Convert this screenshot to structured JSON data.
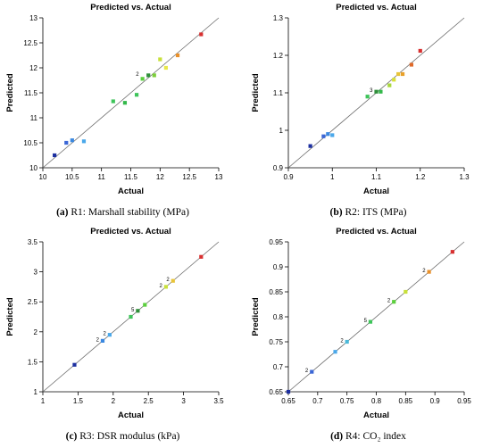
{
  "chart_data": [
    {
      "type": "scatter",
      "title": "Predicted vs. Actual",
      "xlabel": "Actual",
      "ylabel": "Predicted",
      "xlim": [
        10,
        13
      ],
      "ylim": [
        10,
        13
      ],
      "xticks": [
        "10",
        "10.5",
        "11",
        "11.5",
        "12",
        "12.5",
        "13"
      ],
      "yticks": [
        "10",
        "10.5",
        "11",
        "11.5",
        "12",
        "12.5",
        "13"
      ],
      "reference_line": "y = x",
      "points": [
        {
          "x": 10.2,
          "y": 10.25,
          "color": "#1c2fa0"
        },
        {
          "x": 10.4,
          "y": 10.5,
          "color": "#3a66d6"
        },
        {
          "x": 10.5,
          "y": 10.55,
          "color": "#3a88e0"
        },
        {
          "x": 10.7,
          "y": 10.53,
          "color": "#4aa8ea"
        },
        {
          "x": 11.2,
          "y": 11.33,
          "color": "#3ec45a"
        },
        {
          "x": 11.4,
          "y": 11.3,
          "color": "#33b84a"
        },
        {
          "x": 11.6,
          "y": 11.46,
          "color": "#3ec45a"
        },
        {
          "x": 11.7,
          "y": 11.78,
          "color": "#5ccf3e"
        },
        {
          "x": 11.8,
          "y": 11.85,
          "color": "#2f8f3a"
        },
        {
          "x": 11.9,
          "y": 11.85,
          "color": "#7ccf3a"
        },
        {
          "x": 12.0,
          "y": 12.17,
          "color": "#c8e03a"
        },
        {
          "x": 12.1,
          "y": 12.0,
          "color": "#e8e84a"
        },
        {
          "x": 12.3,
          "y": 12.25,
          "color": "#e8902a"
        },
        {
          "x": 12.7,
          "y": 12.67,
          "color": "#d83030"
        }
      ],
      "annotations": [
        {
          "text": "2",
          "x": 11.7,
          "y": 11.85
        }
      ],
      "caption_label": "(a)",
      "caption_text": "R1: Marshall stability (MPa)"
    },
    {
      "type": "scatter",
      "title": "Predicted vs. Actual",
      "xlabel": "Actual",
      "ylabel": "Predicted",
      "xlim": [
        0.9,
        1.3
      ],
      "ylim": [
        0.9,
        1.3
      ],
      "xticks": [
        "0.9",
        "1",
        "1.1",
        "1.2",
        "1.3"
      ],
      "yticks": [
        "0.9",
        "1",
        "1.1",
        "1.2",
        "1.3"
      ],
      "reference_line": "y = x",
      "points": [
        {
          "x": 0.95,
          "y": 0.958,
          "color": "#1c2fa0"
        },
        {
          "x": 0.98,
          "y": 0.984,
          "color": "#3a66d6"
        },
        {
          "x": 0.99,
          "y": 0.99,
          "color": "#3a88e0"
        },
        {
          "x": 1.0,
          "y": 0.987,
          "color": "#4aa8ea"
        },
        {
          "x": 1.08,
          "y": 1.09,
          "color": "#3ec45a"
        },
        {
          "x": 1.1,
          "y": 1.103,
          "color": "#2f8f3a"
        },
        {
          "x": 1.11,
          "y": 1.103,
          "color": "#33b84a"
        },
        {
          "x": 1.13,
          "y": 1.12,
          "color": "#a8d83a"
        },
        {
          "x": 1.14,
          "y": 1.135,
          "color": "#d8e03a"
        },
        {
          "x": 1.15,
          "y": 1.15,
          "color": "#e8c43a"
        },
        {
          "x": 1.16,
          "y": 1.15,
          "color": "#e8a02a"
        },
        {
          "x": 1.18,
          "y": 1.175,
          "color": "#e06a2a"
        },
        {
          "x": 1.2,
          "y": 1.212,
          "color": "#d83030"
        }
      ],
      "annotations": [
        {
          "text": "3",
          "x": 1.1,
          "y": 1.103
        }
      ],
      "caption_label": "(b)",
      "caption_text": "R2: ITS (MPa)"
    },
    {
      "type": "scatter",
      "title": "Predicted vs. Actual",
      "xlabel": "Actual",
      "ylabel": "Predicted",
      "xlim": [
        1,
        3.5
      ],
      "ylim": [
        1,
        3.5
      ],
      "xticks": [
        "1",
        "1.5",
        "2",
        "2.5",
        "3",
        "3.5"
      ],
      "yticks": [
        "1",
        "1.5",
        "2",
        "2.5",
        "3",
        "3.5"
      ],
      "reference_line": "y = x",
      "points": [
        {
          "x": 1.45,
          "y": 1.45,
          "color": "#1c2fa0"
        },
        {
          "x": 1.85,
          "y": 1.85,
          "color": "#3a88e0"
        },
        {
          "x": 1.95,
          "y": 1.95,
          "color": "#4aa8ea"
        },
        {
          "x": 2.25,
          "y": 2.25,
          "color": "#3ec45a"
        },
        {
          "x": 2.35,
          "y": 2.35,
          "color": "#2f8f3a"
        },
        {
          "x": 2.45,
          "y": 2.45,
          "color": "#5ccf3e"
        },
        {
          "x": 2.75,
          "y": 2.75,
          "color": "#c8e03a"
        },
        {
          "x": 2.85,
          "y": 2.85,
          "color": "#e8c43a"
        },
        {
          "x": 3.25,
          "y": 3.25,
          "color": "#d83030"
        }
      ],
      "annotations": [
        {
          "text": "2",
          "x": 1.85,
          "y": 1.85
        },
        {
          "text": "2",
          "x": 1.95,
          "y": 1.95
        },
        {
          "text": "5",
          "x": 2.35,
          "y": 2.35
        },
        {
          "text": "2",
          "x": 2.75,
          "y": 2.75
        },
        {
          "text": "2",
          "x": 2.85,
          "y": 2.85
        }
      ],
      "caption_label": "(c)",
      "caption_text": "R3: DSR modulus (kPa)"
    },
    {
      "type": "scatter",
      "title": "Predicted vs. Actual",
      "xlabel": "Actual",
      "ylabel": "Predicted",
      "xlim": [
        0.65,
        0.95
      ],
      "ylim": [
        0.65,
        0.95
      ],
      "xticks": [
        "0.65",
        "0.7",
        "0.75",
        "0.8",
        "0.85",
        "0.9",
        "0.95"
      ],
      "yticks": [
        "0.65",
        "0.7",
        "0.75",
        "0.8",
        "0.85",
        "0.9",
        "0.95"
      ],
      "reference_line": "y = x",
      "points": [
        {
          "x": 0.65,
          "y": 0.65,
          "color": "#1c2fa0"
        },
        {
          "x": 0.69,
          "y": 0.69,
          "color": "#3a66d6"
        },
        {
          "x": 0.73,
          "y": 0.73,
          "color": "#4aa8ea"
        },
        {
          "x": 0.75,
          "y": 0.75,
          "color": "#4ab8d8"
        },
        {
          "x": 0.79,
          "y": 0.79,
          "color": "#3ec45a"
        },
        {
          "x": 0.83,
          "y": 0.83,
          "color": "#5ccf3e"
        },
        {
          "x": 0.85,
          "y": 0.85,
          "color": "#c8e03a"
        },
        {
          "x": 0.89,
          "y": 0.89,
          "color": "#e8902a"
        },
        {
          "x": 0.93,
          "y": 0.93,
          "color": "#d83030"
        }
      ],
      "annotations": [
        {
          "text": "2",
          "x": 0.69,
          "y": 0.69
        },
        {
          "text": "2",
          "x": 0.75,
          "y": 0.75
        },
        {
          "text": "5",
          "x": 0.79,
          "y": 0.79
        },
        {
          "text": "2",
          "x": 0.83,
          "y": 0.83
        },
        {
          "text": "2",
          "x": 0.89,
          "y": 0.89
        }
      ],
      "caption_label": "(d)",
      "caption_text": "R4: CO₂ index"
    }
  ]
}
